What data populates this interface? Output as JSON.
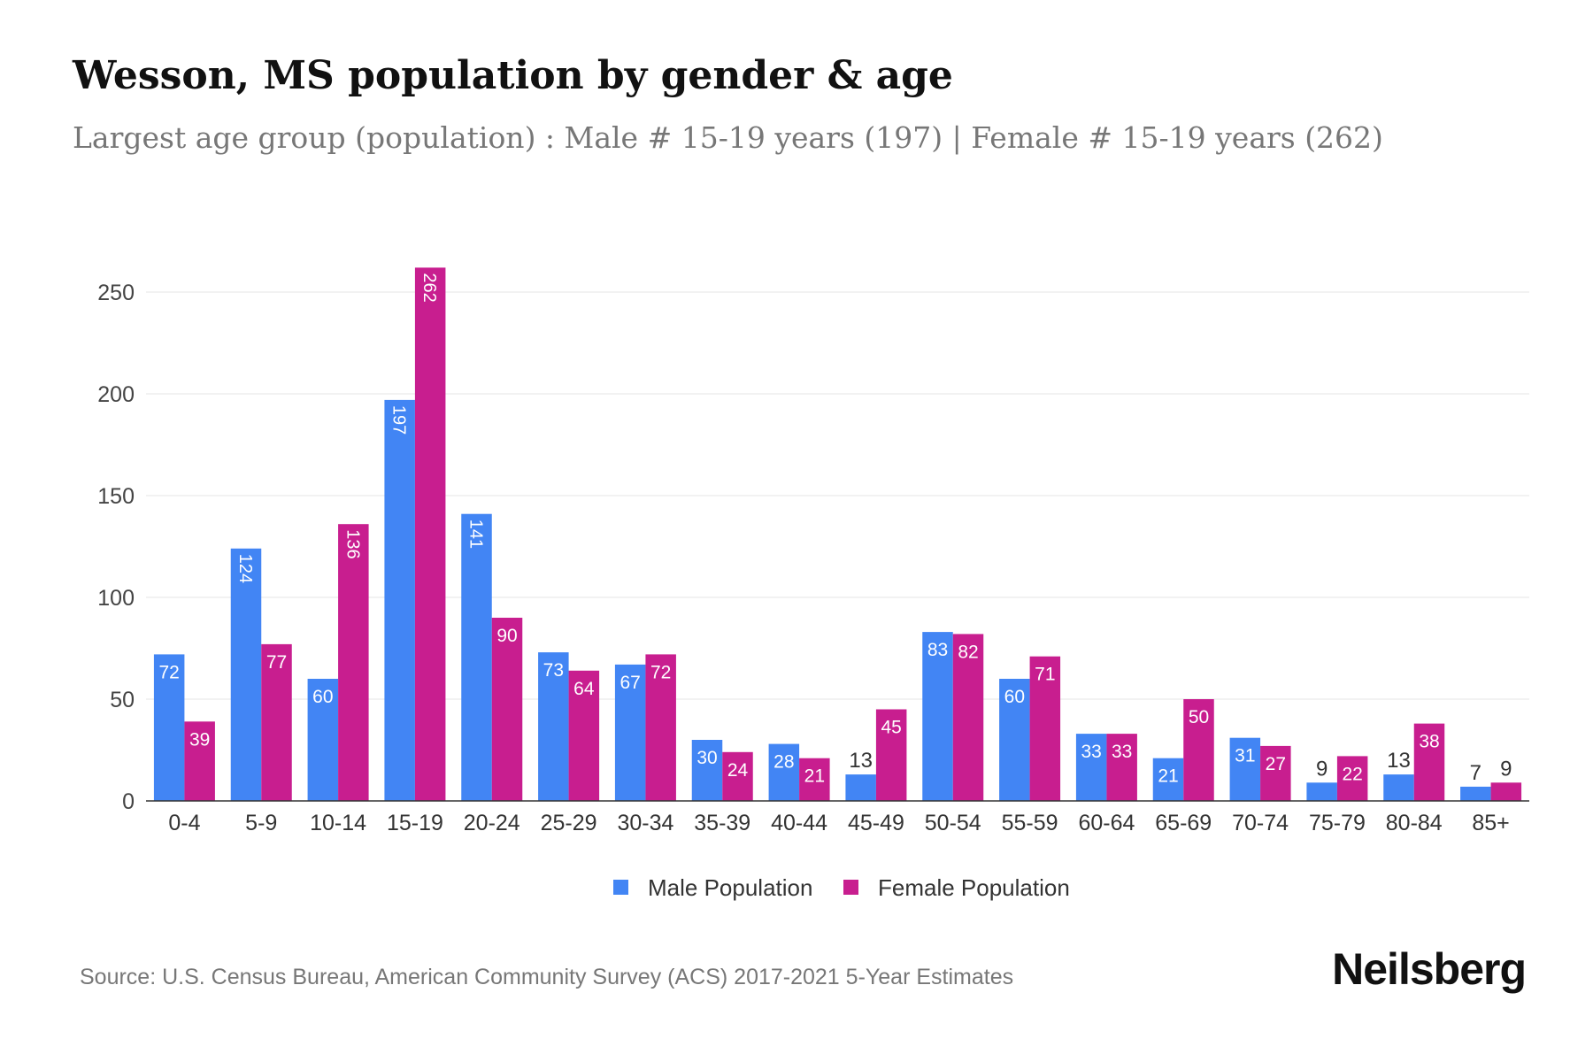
{
  "title": "Wesson, MS population by gender & age",
  "subtitle": "Largest age group (population) : Male # 15-19 years (197) | Female # 15-19 years (262)",
  "source": "Source: U.S. Census Bureau, American Community Survey (ACS) 2017-2021 5-Year Estimates",
  "logo": "Neilsberg",
  "chart_data": {
    "type": "bar",
    "categories": [
      "0-4",
      "5-9",
      "10-14",
      "15-19",
      "20-24",
      "25-29",
      "30-34",
      "35-39",
      "40-44",
      "45-49",
      "50-54",
      "55-59",
      "60-64",
      "65-69",
      "70-74",
      "75-79",
      "80-84",
      "85+"
    ],
    "series": [
      {
        "name": "Male Population",
        "color": "#4285f4",
        "values": [
          72,
          124,
          60,
          197,
          141,
          73,
          67,
          30,
          28,
          13,
          83,
          60,
          33,
          21,
          31,
          9,
          13,
          7
        ]
      },
      {
        "name": "Female Population",
        "color": "#c81e8f",
        "values": [
          39,
          77,
          136,
          262,
          90,
          64,
          72,
          24,
          21,
          45,
          82,
          71,
          33,
          50,
          27,
          22,
          38,
          9
        ]
      }
    ],
    "yticks": [
      0,
      50,
      100,
      150,
      200,
      250
    ],
    "ylim": [
      0,
      262
    ],
    "grid": true,
    "legend": "bottom"
  }
}
